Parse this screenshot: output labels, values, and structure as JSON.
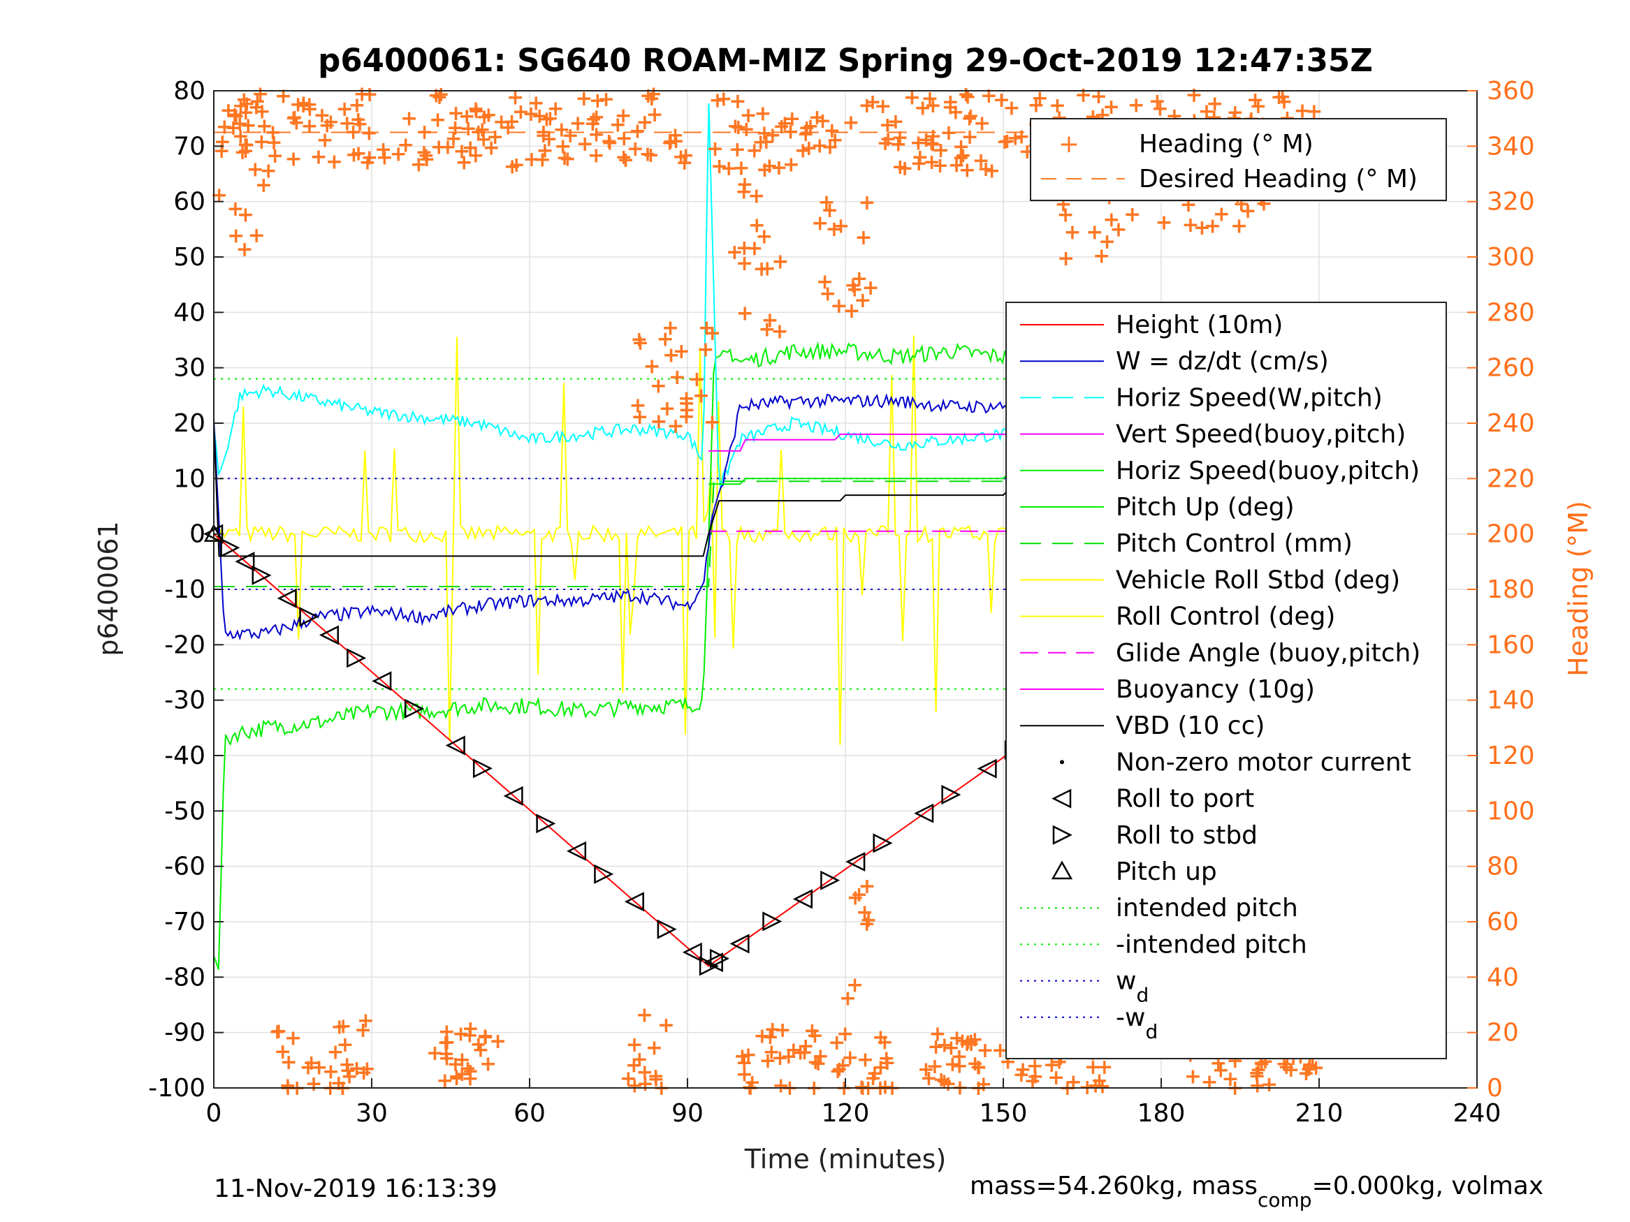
{
  "title": "p6400061: SG640 ROAM-MIZ Spring 29-Oct-2019 12:47:35Z",
  "footer": {
    "date": "11-Nov-2019 16:13:39",
    "mass_text": "mass=54.260kg, mass",
    "mass_sub": "comp",
    "mass_text2": "=0.000kg, volmax"
  },
  "colors": {
    "heading": "#ff7722",
    "height": "#ff0000",
    "w": "#0000cc",
    "horiz_speed": "#00ffff",
    "vert_speed": "#ff00ff",
    "pitch": "#00ee00",
    "roll": "#ffff00",
    "vbd": "#000000",
    "grid": "#e0e0e0"
  },
  "chart_data": {
    "type": "line",
    "title": "p6400061: SG640 ROAM-MIZ Spring 29-Oct-2019 12:47:35Z",
    "xlabel": "Time (minutes)",
    "ylabel": "p6400061",
    "y2label": "Heading (°M)",
    "xlim": [
      0,
      240
    ],
    "ylim": [
      -100,
      80
    ],
    "y2lim": [
      0,
      360
    ],
    "xticks": [
      "0",
      "30",
      "60",
      "90",
      "120",
      "150",
      "180",
      "210",
      "240"
    ],
    "yticks": [
      "80",
      "70",
      "60",
      "50",
      "40",
      "30",
      "20",
      "10",
      "0",
      "-10",
      "-20",
      "-30",
      "-40",
      "-50",
      "-60",
      "-70",
      "-80",
      "-90",
      "-100"
    ],
    "y2ticks": [
      "360",
      "340",
      "320",
      "300",
      "280",
      "260",
      "240",
      "220",
      "200",
      "180",
      "160",
      "140",
      "120",
      "100",
      "80",
      "60",
      "40",
      "20",
      "0"
    ],
    "grid": true,
    "legend_top": [
      "Heading (° M)",
      "Desired Heading (° M)"
    ],
    "legend_main": [
      "Height (10m)",
      "W = dz/dt (cm/s)",
      "Horiz Speed(W,pitch)",
      "Vert Speed(buoy,pitch)",
      "Horiz Speed(buoy,pitch)",
      "Pitch Up (deg)",
      "Pitch Control (mm)",
      "Vehicle Roll Stbd (deg)",
      "Roll Control (deg)",
      "Glide Angle (buoy,pitch)",
      "Buoyancy (10g)",
      "VBD (10 cc)",
      "Non-zero motor current",
      "Roll to port",
      "Roll to stbd",
      "Pitch up",
      "intended pitch",
      "-intended pitch",
      "w",
      "-w"
    ],
    "wd_sub": "d",
    "series": [
      {
        "name": "Height (10m)",
        "x": [
          0,
          94,
          210
        ],
        "y": [
          0,
          -78,
          0
        ]
      },
      {
        "name": "W = dz/dt (cm/s)",
        "x": [
          0,
          2,
          10,
          20,
          30,
          40,
          50,
          60,
          70,
          80,
          90,
          93,
          95,
          97,
          100,
          110,
          120,
          130,
          140,
          150,
          160,
          170,
          180,
          190,
          200,
          210
        ],
        "y": [
          20,
          -18,
          -18,
          -15,
          -14,
          -15,
          -13,
          -12,
          -12,
          -11,
          -13,
          -9,
          5,
          10,
          23,
          24,
          24,
          24,
          23,
          23,
          23,
          23,
          23,
          23,
          23,
          22
        ]
      },
      {
        "name": "Horiz Speed(W,pitch)",
        "x": [
          0,
          1,
          5,
          10,
          20,
          30,
          40,
          50,
          60,
          70,
          80,
          90,
          93,
          94,
          96,
          100,
          110,
          120,
          130,
          140,
          150,
          160,
          170,
          180,
          190,
          200,
          210
        ],
        "y": [
          20,
          10,
          25,
          26,
          24,
          22,
          21,
          20,
          17,
          18,
          19,
          18,
          13,
          80,
          8,
          17,
          20,
          18,
          16,
          17,
          18,
          15,
          15,
          16,
          14,
          15,
          13
        ]
      },
      {
        "name": "Vert Speed(buoy,pitch)",
        "x": [
          94,
          100,
          101,
          118,
          119,
          153,
          154,
          170,
          171,
          210
        ],
        "y": [
          15,
          15,
          17,
          17,
          18,
          18,
          19,
          19,
          20,
          20
        ]
      },
      {
        "name": "Horiz Speed(buoy,pitch)",
        "x": [
          94,
          100,
          101,
          150,
          151,
          170,
          171,
          210
        ],
        "y": [
          9,
          9,
          10,
          10,
          11,
          11,
          12,
          12
        ]
      },
      {
        "name": "Pitch Up (deg)",
        "x": [
          0,
          1,
          2,
          4,
          10,
          20,
          30,
          40,
          50,
          60,
          70,
          80,
          90,
          93,
          94,
          95,
          96,
          98,
          100,
          110,
          120,
          130,
          140,
          150,
          160,
          170,
          180,
          190,
          200,
          210
        ],
        "y": [
          -75,
          -78,
          -38,
          -36,
          -35,
          -34,
          -32,
          -32,
          -31,
          -31,
          -32,
          -31,
          -31,
          -30,
          0,
          30,
          31,
          33,
          31,
          33,
          33,
          32,
          33,
          32,
          32,
          31,
          32,
          33,
          32,
          31
        ]
      },
      {
        "name": "Pitch Control (mm)",
        "x": [
          0,
          94,
          95,
          210
        ],
        "y": [
          -9.5,
          -9.5,
          9.5,
          9.5
        ]
      },
      {
        "name": "Roll Control (deg)",
        "x": [
          0,
          94,
          95,
          210
        ],
        "y": [
          0,
          0,
          0,
          0
        ]
      },
      {
        "name": "Glide Angle (buoy,pitch)",
        "x": [
          94,
          210
        ],
        "y": [
          0.5,
          0.5
        ]
      },
      {
        "name": "Buoyancy (10g)",
        "x": [
          94,
          210
        ],
        "y": [
          0.5,
          0.5
        ]
      },
      {
        "name": "VBD (10 cc)",
        "x": [
          0,
          1,
          2,
          93,
          94,
          96,
          119,
          120,
          150,
          151,
          210
        ],
        "y": [
          20,
          -4,
          -4,
          -4,
          0,
          6,
          6,
          7,
          7,
          8,
          8
        ]
      },
      {
        "name": "intended pitch",
        "x": [
          0,
          210
        ],
        "y": [
          28,
          28
        ]
      },
      {
        "name": "-intended pitch",
        "x": [
          0,
          210
        ],
        "y": [
          -28,
          -28
        ]
      },
      {
        "name": "w",
        "x": [
          0,
          210
        ],
        "y": [
          10,
          10
        ]
      },
      {
        "name": "-w",
        "x": [
          0,
          210
        ],
        "y": [
          -10,
          -10
        ]
      }
    ],
    "desired_heading": {
      "x": [
        0,
        210
      ],
      "y2": [
        345,
        345
      ]
    },
    "roll_markers": {
      "t": [
        0,
        3,
        6,
        9,
        14,
        18,
        22,
        27,
        32,
        38,
        46,
        51,
        57,
        63,
        69,
        74,
        80,
        86,
        91,
        94,
        95,
        96,
        100,
        106,
        112,
        117,
        122,
        127,
        135,
        140,
        147,
        152,
        158,
        163,
        168,
        173,
        178,
        183,
        188,
        193,
        198,
        202,
        206,
        210
      ]
    }
  }
}
